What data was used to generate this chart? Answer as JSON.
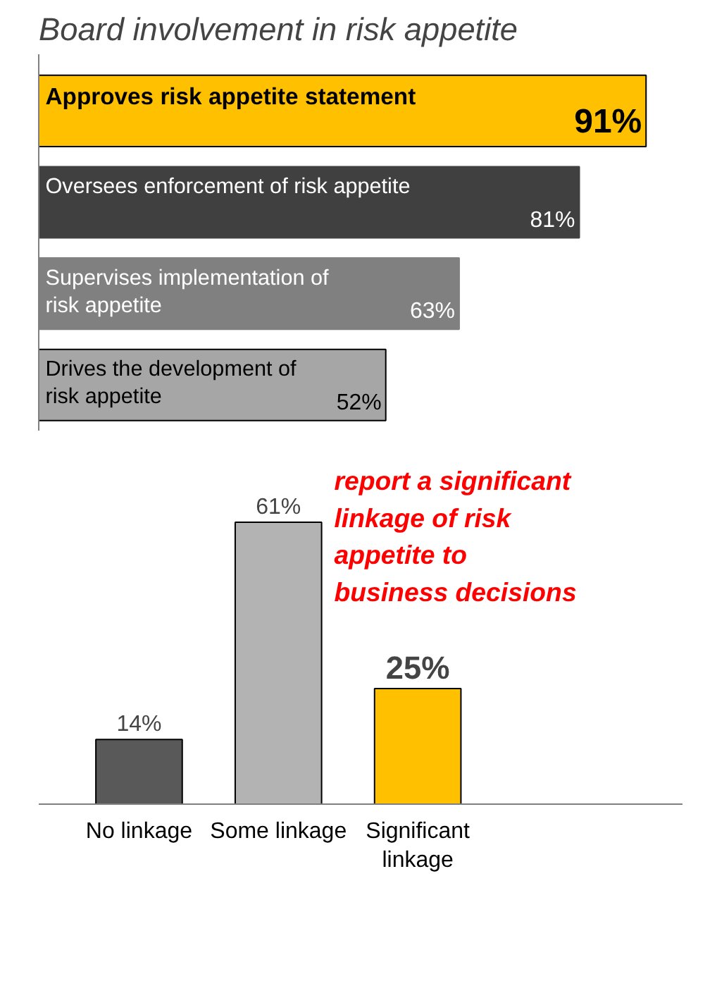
{
  "chart_data": [
    {
      "type": "bar",
      "orientation": "horizontal",
      "title": "Board involvement in risk appetite",
      "categories": [
        "Approves risk appetite statement",
        "Oversees enforcement of risk appetite",
        "Supervises implementation of\nrisk appetite",
        "Drives the development of\nrisk appetite"
      ],
      "values": [
        91,
        81,
        63,
        52
      ],
      "colors": [
        "#ffc000",
        "#404040",
        "#808080",
        "#a6a6a6"
      ],
      "data_labels": true,
      "value_labels": [
        "91%",
        "81%",
        "63%",
        "52%"
      ]
    },
    {
      "type": "bar",
      "categories": [
        "No linkage",
        "Some linkage",
        "Significant\nlinkage"
      ],
      "values": [
        14,
        61,
        25
      ],
      "colors": [
        "#595959",
        "#b3b3b3",
        "#ffc000"
      ],
      "data_labels": true,
      "value_labels": [
        "14%",
        "61%",
        "25%"
      ],
      "annotations": [
        "report a significant\nlinkage of risk\nappetite to\nbusiness decisions"
      ]
    }
  ]
}
